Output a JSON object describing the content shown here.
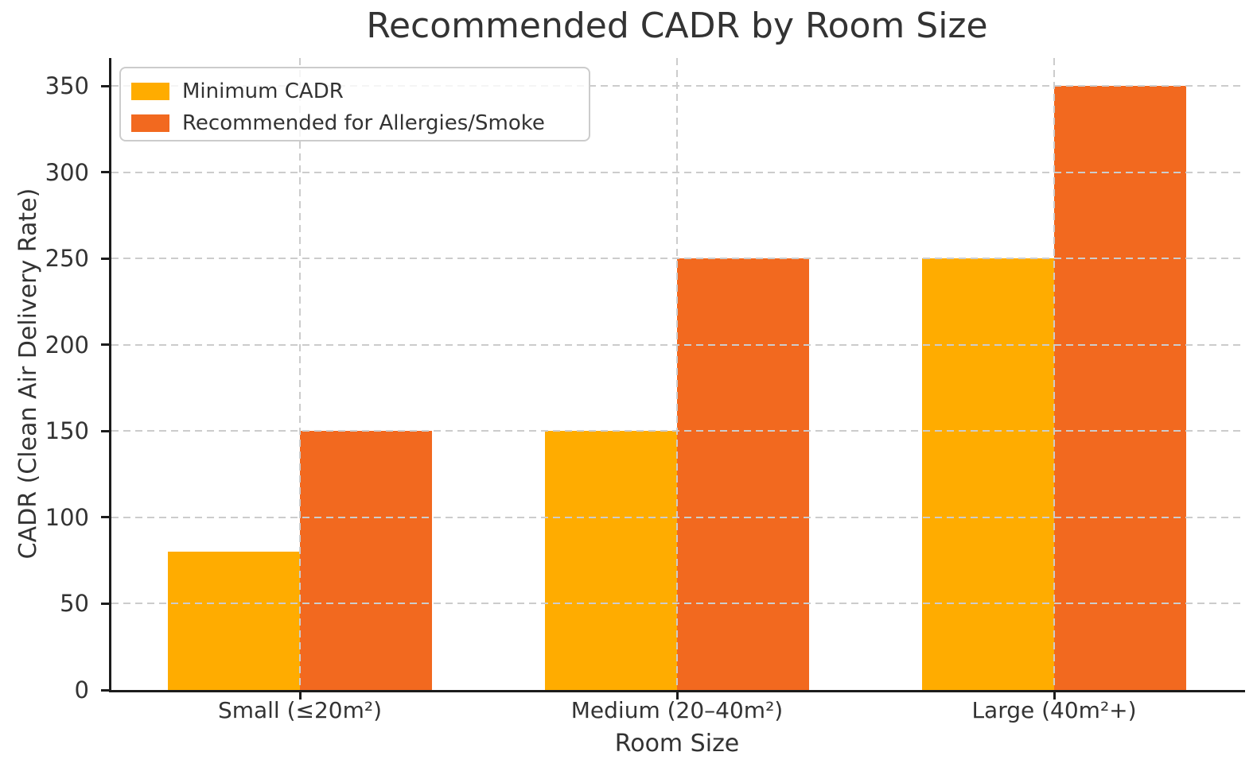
{
  "chart_data": {
    "type": "bar",
    "title": "Recommended CADR by Room Size",
    "xlabel": "Room Size",
    "ylabel": "CADR (Clean Air Delivery Rate)",
    "categories": [
      "Small (≤20m²)",
      "Medium (20–40m²)",
      "Large (40m²+)"
    ],
    "series": [
      {
        "name": "Minimum CADR",
        "color": "#FFAC00",
        "values": [
          80,
          150,
          250
        ]
      },
      {
        "name": "Recommended for Allergies/Smoke",
        "color": "#F2691F",
        "values": [
          150,
          250,
          350
        ]
      }
    ],
    "ylim": [
      0,
      350
    ],
    "yticks": [
      0,
      50,
      100,
      150,
      200,
      250,
      300,
      350
    ],
    "bar_width": 0.35,
    "grid": true,
    "grid_style": "dashed",
    "legend_position": "upper left"
  },
  "colors": {
    "text": "#333333",
    "grid": "#cccccc",
    "spine": "#1c1c1c",
    "legend_border": "#cccccc",
    "background": "#ffffff"
  }
}
